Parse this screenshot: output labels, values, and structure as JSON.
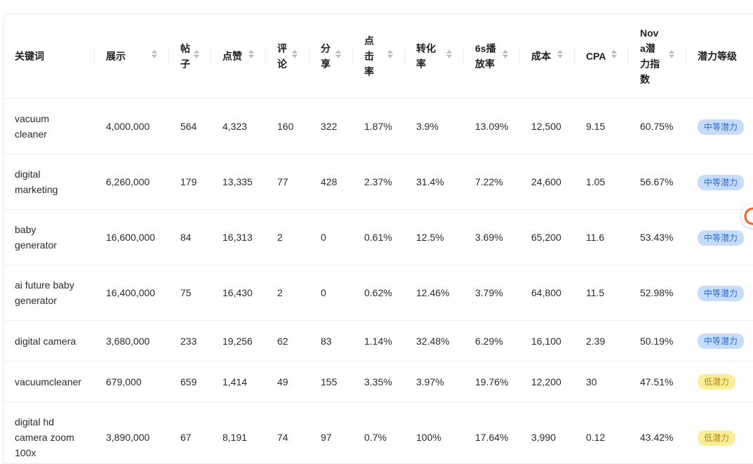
{
  "table": {
    "headers": [
      "关键词",
      "展示",
      "帖子",
      "点赞",
      "评论",
      "分享",
      "点击率",
      "转化率",
      "6s播放率",
      "成本",
      "CPA",
      "Nova潜力指数",
      "潜力等级"
    ],
    "rows": [
      [
        "vacuum cleaner",
        "4,000,000",
        "564",
        "4,323",
        "160",
        "322",
        "1.87%",
        "3.9%",
        "13.09%",
        "12,500",
        "9.15",
        "60.75%",
        "中等潜力"
      ],
      [
        "digital marketing",
        "6,260,000",
        "179",
        "13,335",
        "77",
        "428",
        "2.37%",
        "31.4%",
        "7.22%",
        "24,600",
        "1.05",
        "56.67%",
        "中等潜力"
      ],
      [
        "baby generator",
        "16,600,000",
        "84",
        "16,313",
        "2",
        "0",
        "0.61%",
        "12.5%",
        "3.69%",
        "65,200",
        "11.6",
        "53.43%",
        "中等潜力"
      ],
      [
        "ai future baby generator",
        "16,400,000",
        "75",
        "16,430",
        "2",
        "0",
        "0.62%",
        "12.46%",
        "3.79%",
        "64,800",
        "11.5",
        "52.98%",
        "中等潜力"
      ],
      [
        "digital camera",
        "3,680,000",
        "233",
        "19,256",
        "62",
        "83",
        "1.14%",
        "32.48%",
        "6.29%",
        "16,100",
        "2.39",
        "50.19%",
        "中等潜力"
      ],
      [
        "vacuumcleaner",
        "679,000",
        "659",
        "1,414",
        "49",
        "155",
        "3.35%",
        "3.97%",
        "19.76%",
        "12,200",
        "30",
        "47.51%",
        "低潜力"
      ],
      [
        "digital hd camera zoom 100x",
        "3,890,000",
        "67",
        "8,191",
        "74",
        "97",
        "0.7%",
        "100%",
        "17.64%",
        "3,990",
        "0.12",
        "43.42%",
        "低潜力"
      ]
    ]
  }
}
